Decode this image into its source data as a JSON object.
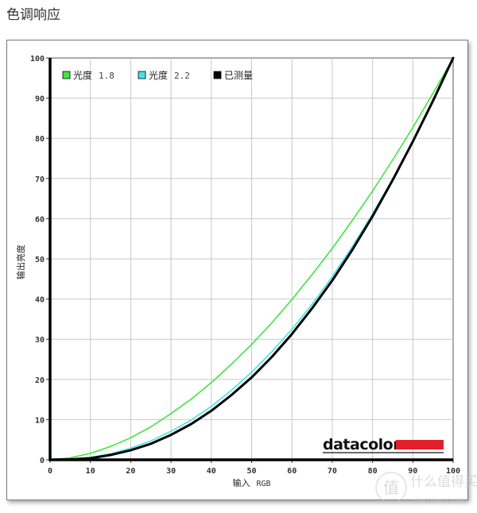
{
  "page": {
    "title": "色调响应"
  },
  "colors": {
    "gamma18": "#3fe63f",
    "gamma22": "#44e4e4",
    "measured": "#000000",
    "grid": "#c8c8c8",
    "logo_red": "#e3202a"
  },
  "chart_data": {
    "type": "line",
    "title": "色调响应",
    "xlabel": "输入 RGB",
    "ylabel": "输出亮度",
    "xlim": [
      0,
      100
    ],
    "ylim": [
      0,
      100
    ],
    "grid": true,
    "legend_position": "top-left inside",
    "x_ticks": [
      0,
      10,
      20,
      30,
      40,
      50,
      60,
      70,
      80,
      90,
      100
    ],
    "y_ticks": [
      0,
      10,
      20,
      30,
      40,
      50,
      60,
      70,
      80,
      90,
      100
    ],
    "x": [
      0,
      5,
      10,
      15,
      20,
      25,
      30,
      35,
      40,
      45,
      50,
      55,
      60,
      65,
      70,
      75,
      80,
      85,
      90,
      95,
      100
    ],
    "series": [
      {
        "name": "光度 1.8",
        "color": "#3fe63f",
        "values": [
          0,
          0.5,
          1.6,
          3.3,
          5.5,
          8.2,
          11.5,
          15.1,
          19.2,
          23.8,
          28.7,
          34.1,
          39.9,
          46.1,
          52.6,
          59.6,
          66.9,
          74.6,
          82.7,
          91.2,
          100
        ]
      },
      {
        "name": "光度 2.2",
        "color": "#44e4e4",
        "values": [
          0,
          0.1,
          0.6,
          1.5,
          2.9,
          4.7,
          7.1,
          9.9,
          13.3,
          17.3,
          21.8,
          26.9,
          32.5,
          38.7,
          45.6,
          53.1,
          61.2,
          69.9,
          79.3,
          89.3,
          100
        ]
      },
      {
        "name": "已测量",
        "color": "#000000",
        "values": [
          0,
          0.1,
          0.4,
          1.2,
          2.4,
          4.0,
          6.2,
          8.9,
          12.2,
          16.1,
          20.5,
          25.6,
          31.3,
          37.7,
          44.6,
          52.3,
          60.6,
          69.6,
          79.2,
          89.3,
          100
        ]
      }
    ]
  },
  "legend": [
    {
      "label": "光度",
      "value": "1.8",
      "swatch": "#3fe63f"
    },
    {
      "label": "光度",
      "value": "2.2",
      "swatch": "#44e4e4"
    },
    {
      "label": "已测量",
      "value": "",
      "swatch": "#000000"
    }
  ],
  "axes": {
    "x_label_cn": "输入",
    "x_label_en": "RGB",
    "y_label": "输出亮度"
  },
  "logo": {
    "text": "datacolor"
  },
  "watermark": {
    "glyph": "值",
    "text": "什么值得买",
    "sub": "SMZDM.COM"
  }
}
